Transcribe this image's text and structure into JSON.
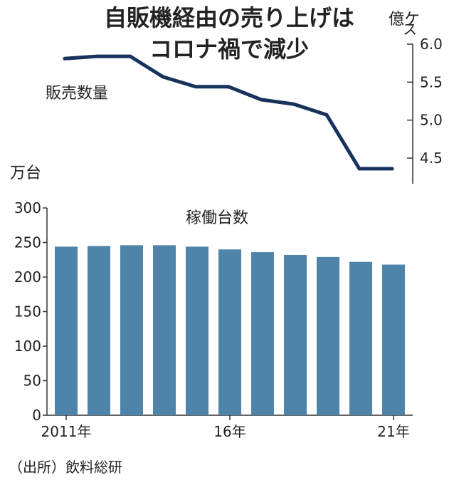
{
  "title_lines": [
    "自販機経由の売り上げは",
    "コロナ禍で減少"
  ],
  "source": "（出所）飲料総研",
  "chart_data": [
    {
      "type": "line",
      "title": "自販機経由の売り上げはコロナ禍で減少",
      "series_label": "販売数量",
      "unit": "億ケース",
      "unit_lines": [
        "億ケ",
        "ス"
      ],
      "x": [
        2011,
        2012,
        2013,
        2014,
        2015,
        2016,
        2017,
        2018,
        2019,
        2020,
        2021
      ],
      "values": [
        5.81,
        5.84,
        5.84,
        5.57,
        5.44,
        5.44,
        5.27,
        5.21,
        5.07,
        4.36,
        4.36
      ],
      "ylim": [
        4.3,
        6.0
      ],
      "yticks": [
        4.5,
        5.0,
        5.5,
        6.0
      ],
      "ytick_labels": [
        "4.5",
        "5.0",
        "5.5",
        "6.0"
      ],
      "axis_side": "right",
      "color": "#17325c"
    },
    {
      "type": "bar",
      "series_label": "稼働台数",
      "unit": "万台",
      "categories": [
        "2011",
        "2012",
        "2013",
        "2014",
        "2015",
        "2016",
        "2017",
        "2018",
        "2019",
        "2020",
        "2021"
      ],
      "values": [
        244,
        245,
        246,
        246,
        244,
        240,
        236,
        232,
        229,
        222,
        218
      ],
      "ylim": [
        0,
        300
      ],
      "yticks": [
        0,
        50,
        100,
        150,
        200,
        250,
        300
      ],
      "ytick_labels": [
        "0",
        "50",
        "100",
        "150",
        "200",
        "250",
        "300"
      ],
      "xtick_labels": [
        {
          "index": 0,
          "text": "2011年"
        },
        {
          "index": 5,
          "text": "16年"
        },
        {
          "index": 10,
          "text": "21年"
        }
      ],
      "color": "#4e84aa"
    }
  ]
}
